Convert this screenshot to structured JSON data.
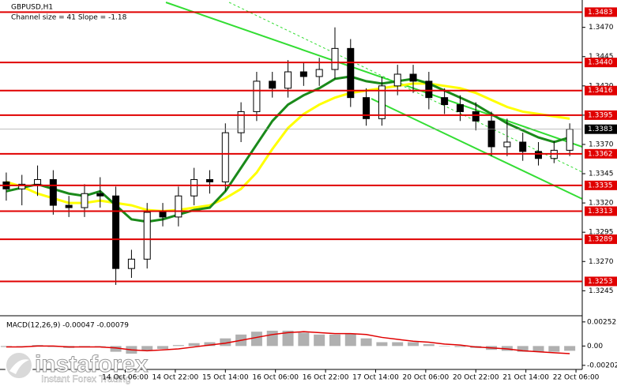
{
  "chart_data": [
    {
      "type": "candlestick",
      "title": "GBPUSD,H1",
      "subtitle": "Channel size = 41 Slope = -1.18",
      "x": [
        2,
        7,
        12,
        17,
        22,
        27,
        32,
        37,
        42,
        47,
        52,
        57,
        62,
        67,
        72,
        77,
        82,
        87,
        92,
        97,
        102,
        107,
        112,
        117,
        122,
        127,
        132,
        137,
        142,
        147,
        152,
        157,
        162,
        167,
        172,
        177,
        182
      ],
      "open": [
        1.3338,
        1.3332,
        1.3336,
        1.334,
        1.3318,
        1.3316,
        1.3328,
        1.3326,
        1.3264,
        1.3272,
        1.3312,
        1.3308,
        1.3326,
        1.334,
        1.3338,
        1.338,
        1.3398,
        1.3424,
        1.3418,
        1.3432,
        1.3428,
        1.3434,
        1.3452,
        1.341,
        1.3392,
        1.342,
        1.343,
        1.3424,
        1.341,
        1.3404,
        1.3398,
        1.339,
        1.3368,
        1.3372,
        1.3364,
        1.3358,
        1.3365
      ],
      "high": [
        1.3346,
        1.3344,
        1.3352,
        1.3348,
        1.3326,
        1.3336,
        1.3342,
        1.3334,
        1.328,
        1.332,
        1.332,
        1.3334,
        1.335,
        1.3348,
        1.3388,
        1.3406,
        1.3432,
        1.3432,
        1.3442,
        1.344,
        1.3444,
        1.347,
        1.346,
        1.3418,
        1.3428,
        1.3438,
        1.3438,
        1.3432,
        1.3418,
        1.3412,
        1.3406,
        1.3398,
        1.3392,
        1.338,
        1.3372,
        1.3373,
        1.3388
      ],
      "low": [
        1.3322,
        1.3318,
        1.3326,
        1.331,
        1.3308,
        1.3308,
        1.3316,
        1.325,
        1.3256,
        1.3264,
        1.33,
        1.33,
        1.3318,
        1.3328,
        1.333,
        1.3372,
        1.339,
        1.341,
        1.341,
        1.342,
        1.342,
        1.3426,
        1.3402,
        1.3386,
        1.3386,
        1.3412,
        1.3414,
        1.34,
        1.3396,
        1.339,
        1.3382,
        1.336,
        1.336,
        1.3356,
        1.3352,
        1.3354,
        1.336
      ],
      "close": [
        1.3332,
        1.3336,
        1.334,
        1.3318,
        1.3316,
        1.3328,
        1.3326,
        1.3264,
        1.3272,
        1.3312,
        1.3308,
        1.3326,
        1.334,
        1.3338,
        1.338,
        1.3398,
        1.3424,
        1.3418,
        1.3432,
        1.3428,
        1.3434,
        1.3452,
        1.341,
        1.3392,
        1.342,
        1.343,
        1.3424,
        1.341,
        1.3404,
        1.3398,
        1.339,
        1.3368,
        1.3372,
        1.3364,
        1.3358,
        1.3365,
        1.3383
      ],
      "series": [
        {
          "color": "#ffff00",
          "values": [
            1.3338,
            1.3334,
            1.3328,
            1.3324,
            1.332,
            1.332,
            1.3322,
            1.332,
            1.3318,
            1.3314,
            1.3313,
            1.3314,
            1.3316,
            1.3318,
            1.3324,
            1.3332,
            1.3346,
            1.3366,
            1.3384,
            1.3396,
            1.3404,
            1.341,
            1.3414,
            1.3416,
            1.3418,
            1.342,
            1.3422,
            1.3422,
            1.342,
            1.3418,
            1.3414,
            1.3408,
            1.3402,
            1.3398,
            1.3396,
            1.3394,
            1.3392
          ]
        },
        {
          "color": "#1a8a1a",
          "values": [
            1.333,
            1.3333,
            1.3336,
            1.3332,
            1.3328,
            1.3326,
            1.333,
            1.3318,
            1.3306,
            1.3304,
            1.3306,
            1.331,
            1.3314,
            1.3316,
            1.333,
            1.335,
            1.337,
            1.339,
            1.3404,
            1.3412,
            1.3418,
            1.3426,
            1.3428,
            1.3424,
            1.3422,
            1.3424,
            1.3426,
            1.3422,
            1.3416,
            1.341,
            1.3404,
            1.3396,
            1.3388,
            1.3382,
            1.3376,
            1.3372,
            1.3376
          ]
        }
      ],
      "levels": [
        {
          "value": 1.3483,
          "label": "1.3483"
        },
        {
          "value": 1.344,
          "label": "1.3440"
        },
        {
          "value": 1.3416,
          "label": "1.3416"
        },
        {
          "value": 1.3395,
          "label": "1.3395"
        },
        {
          "value": 1.3362,
          "label": "1.3362"
        },
        {
          "value": 1.3335,
          "label": "1.3335"
        },
        {
          "value": 1.3313,
          "label": "1.3313"
        },
        {
          "value": 1.3289,
          "label": "1.3289"
        },
        {
          "value": 1.3253,
          "label": "1.3253"
        }
      ],
      "level_color": "#e00000",
      "last_price": {
        "value": 1.3383,
        "label": "1.3383"
      },
      "xlim": [
        0,
        186
      ],
      "ylim": [
        1.3225,
        1.349
      ],
      "xticks": [
        {
          "value": 40,
          "label": "14 Oct 06:00"
        },
        {
          "value": 56,
          "label": "14 Oct 22:00"
        },
        {
          "value": 72,
          "label": "15 Oct 14:00"
        },
        {
          "value": 88,
          "label": "16 Oct 06:00"
        },
        {
          "value": 104,
          "label": "16 Oct 22:00"
        },
        {
          "value": 120,
          "label": "17 Oct 14:00"
        },
        {
          "value": 136,
          "label": "20 Oct 06:00"
        },
        {
          "value": 152,
          "label": "20 Oct 22:00"
        },
        {
          "value": 168,
          "label": "21 Oct 14:00"
        },
        {
          "value": 184,
          "label": "22 Oct 06:00"
        }
      ],
      "yticks": [
        {
          "value": 1.3245,
          "label": "1.3245"
        },
        {
          "value": 1.327,
          "label": "1.3270"
        },
        {
          "value": 1.3295,
          "label": "1.3295"
        },
        {
          "value": 1.332,
          "label": "1.3320"
        },
        {
          "value": 1.3345,
          "label": "1.3345"
        },
        {
          "value": 1.337,
          "label": "1.3370"
        },
        {
          "value": 1.3395,
          "label": "1.3395"
        },
        {
          "value": 1.342,
          "label": "1.3420"
        },
        {
          "value": 1.3445,
          "label": "1.3445"
        },
        {
          "value": 1.347,
          "label": "1.3470"
        }
      ]
    },
    {
      "type": "macd",
      "title": "MACD(12,26,9) -0.00047 -0.00079",
      "values": [
        -0.0001,
        0,
        0.0001,
        -0.0001,
        -0.0002,
        -0.0001,
        0,
        -0.0006,
        -0.0008,
        -0.0005,
        -0.0003,
        0.0001,
        0.0003,
        0.0004,
        0.0008,
        0.0012,
        0.0015,
        0.0016,
        0.0016,
        0.0014,
        0.0012,
        0.0012,
        0.0013,
        0.0008,
        0.0004,
        0.0004,
        0.0004,
        0.0002,
        0,
        -0.0001,
        -0.0002,
        -0.0004,
        -0.0005,
        -0.0006,
        -0.0006,
        -0.0006,
        -0.0005
      ],
      "color": "#b0b0b0",
      "signal": {
        "color": "#e00000",
        "values": [
          -0.0001,
          -0.0001,
          0,
          0,
          -0.0001,
          -0.0001,
          -0.0001,
          -0.0002,
          -0.0004,
          -0.0005,
          -0.0004,
          -0.0003,
          -0.0001,
          0.0001,
          0.0003,
          0.0006,
          0.0009,
          0.0012,
          0.0014,
          0.0015,
          0.0014,
          0.0013,
          0.0013,
          0.0012,
          0.0009,
          0.0007,
          0.0005,
          0.0004,
          0.0002,
          0.0001,
          -0.0001,
          -0.0002,
          -0.0003,
          -0.0005,
          -0.0006,
          -0.0007,
          -0.0008
        ]
      },
      "ylim": [
        -0.0022,
        0.003
      ],
      "yticks": [
        0.00252,
        {
          "value": 0,
          "label": "0.00"
        },
        -0.00202
      ]
    }
  ],
  "watermark": {
    "brand": "instaforex",
    "tagline": "Instant Forex Trading"
  }
}
